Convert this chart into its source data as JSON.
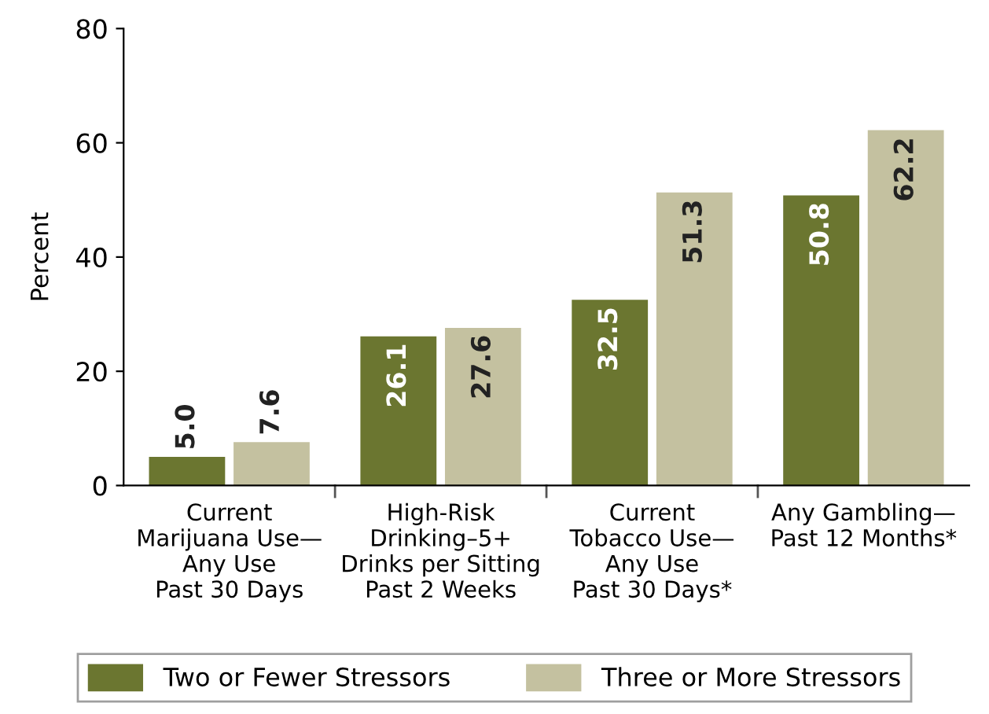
{
  "chart_data": {
    "type": "bar",
    "ylabel": "Percent",
    "categories": [
      "Current\nMarijuana Use—\nAny Use\nPast 30 Days",
      "High-Risk\nDrinking–5+\nDrinks per Sitting\nPast 2 Weeks",
      "Current\nTobacco Use—\nAny Use\nPast 30 Days*",
      "Any Gambling—\nPast 12 Months*"
    ],
    "series": [
      {
        "name": "Two or Fewer Stressors",
        "color": "#6b7630",
        "values": [
          5.0,
          26.1,
          32.5,
          50.8
        ],
        "value_labels": [
          "5.0",
          "26.1",
          "32.5",
          "50.8"
        ]
      },
      {
        "name": "Three or More Stressors",
        "color": "#c4c1a0",
        "values": [
          7.6,
          27.6,
          51.3,
          62.2
        ],
        "value_labels": [
          "7.6",
          "27.6",
          "51.3",
          "62.2"
        ]
      }
    ],
    "ylim": [
      0,
      80
    ],
    "yticks": [
      0,
      20,
      40,
      60,
      80
    ],
    "grid": false,
    "legend": "bottom"
  }
}
